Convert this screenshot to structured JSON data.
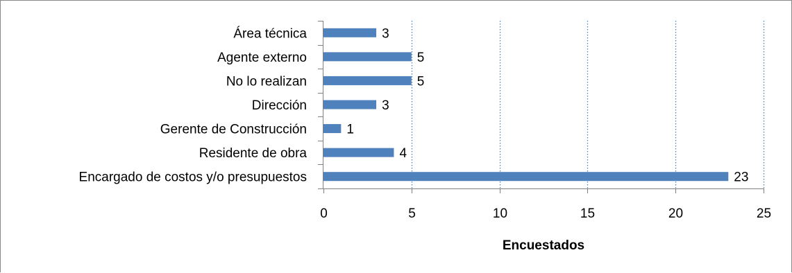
{
  "chart_data": {
    "type": "bar",
    "orientation": "horizontal",
    "categories": [
      "Área técnica",
      "Agente externo",
      "No lo realizan",
      "Dirección",
      "Gerente de Construcción",
      "Residente de obra",
      "Encargado de costos y/o presupuestos"
    ],
    "values": [
      3,
      5,
      5,
      3,
      1,
      4,
      23
    ],
    "xlabel": "Encuestados",
    "ylabel": "",
    "xlim": [
      0,
      25
    ],
    "xticks": [
      0,
      5,
      10,
      15,
      20,
      25
    ],
    "grid": "vertical dotted",
    "legend": "none",
    "colors": {
      "bar": "#4F81BD",
      "grid": "#4F81BD",
      "axis": "#808080",
      "border": "#888888"
    }
  }
}
